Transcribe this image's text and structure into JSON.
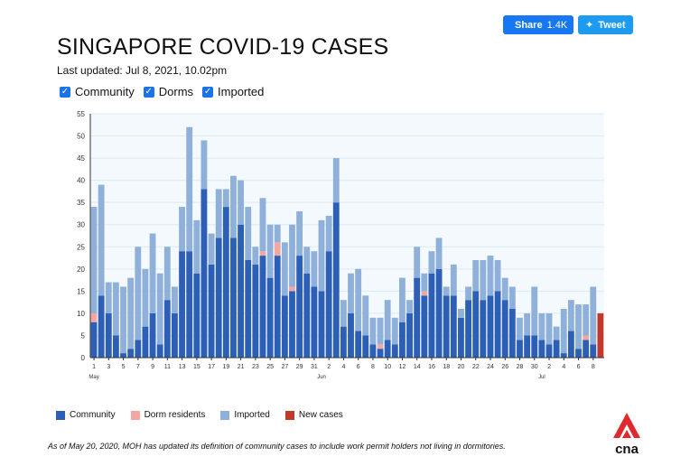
{
  "share": {
    "facebook_label": "Share",
    "facebook_count": "1.4K",
    "tweet_label": "Tweet",
    "facebook_icon": "facebook-icon",
    "twitter_icon": "twitter-icon"
  },
  "title": "SINGAPORE COVID-19 CASES",
  "last_updated": "Last updated: Jul 8, 2021, 10.02pm",
  "filters": [
    {
      "label": "Community",
      "checked": true
    },
    {
      "label": "Dorms",
      "checked": true
    },
    {
      "label": "Imported",
      "checked": true
    }
  ],
  "legend": [
    {
      "label": "Community",
      "color": "#2c5fb5"
    },
    {
      "label": "Dorm residents",
      "color": "#f4a6a0"
    },
    {
      "label": "Imported",
      "color": "#8fb0d8"
    },
    {
      "label": "New cases",
      "color": "#c0392b"
    }
  ],
  "note": "As of May 20, 2020, MOH has updated its definition of community cases to include work permit holders not living in dormitories.",
  "logo": {
    "text": "cna",
    "color": "#e0292e"
  },
  "chart_data": {
    "type": "bar",
    "stacked": true,
    "ylim": [
      0,
      55
    ],
    "yticks": [
      0,
      5,
      10,
      15,
      20,
      25,
      30,
      35,
      40,
      45,
      50,
      55
    ],
    "grid": true,
    "tick_labels": [
      {
        "index": 0,
        "label": "1"
      },
      {
        "index": 2,
        "label": "3"
      },
      {
        "index": 4,
        "label": "5"
      },
      {
        "index": 6,
        "label": "7"
      },
      {
        "index": 8,
        "label": "9"
      },
      {
        "index": 10,
        "label": "11"
      },
      {
        "index": 12,
        "label": "13"
      },
      {
        "index": 14,
        "label": "15"
      },
      {
        "index": 16,
        "label": "17"
      },
      {
        "index": 18,
        "label": "19"
      },
      {
        "index": 20,
        "label": "21"
      },
      {
        "index": 22,
        "label": "23"
      },
      {
        "index": 24,
        "label": "25"
      },
      {
        "index": 26,
        "label": "27"
      },
      {
        "index": 28,
        "label": "29"
      },
      {
        "index": 30,
        "label": "31"
      },
      {
        "index": 32,
        "label": "2"
      },
      {
        "index": 34,
        "label": "4"
      },
      {
        "index": 36,
        "label": "6"
      },
      {
        "index": 38,
        "label": "8"
      },
      {
        "index": 40,
        "label": "10"
      },
      {
        "index": 42,
        "label": "12"
      },
      {
        "index": 44,
        "label": "14"
      },
      {
        "index": 46,
        "label": "16"
      },
      {
        "index": 48,
        "label": "18"
      },
      {
        "index": 50,
        "label": "20"
      },
      {
        "index": 52,
        "label": "22"
      },
      {
        "index": 54,
        "label": "24"
      },
      {
        "index": 56,
        "label": "26"
      },
      {
        "index": 58,
        "label": "28"
      },
      {
        "index": 60,
        "label": "30"
      },
      {
        "index": 62,
        "label": "2"
      },
      {
        "index": 64,
        "label": "4"
      },
      {
        "index": 66,
        "label": "6"
      },
      {
        "index": 68,
        "label": "8"
      }
    ],
    "month_labels": [
      {
        "index": 0,
        "label": "May"
      },
      {
        "index": 31,
        "label": "Jun"
      },
      {
        "index": 61,
        "label": "Jul"
      }
    ],
    "series": [
      {
        "name": "Community",
        "color": "#2c5fb5",
        "values": [
          8,
          14,
          10,
          5,
          1,
          2,
          4,
          7,
          10,
          3,
          13,
          10,
          24,
          24,
          19,
          38,
          21,
          27,
          34,
          27,
          30,
          22,
          21,
          23,
          18,
          23,
          14,
          15,
          23,
          19,
          16,
          15,
          24,
          35,
          7,
          10,
          6,
          5,
          3,
          2,
          4,
          3,
          8,
          10,
          18,
          14,
          19,
          20,
          14,
          14,
          9,
          13,
          15,
          13,
          14,
          15,
          13,
          11,
          4,
          5,
          5,
          4,
          3,
          4,
          1,
          6,
          2,
          4,
          3,
          0
        ]
      },
      {
        "name": "Dorm residents",
        "color": "#f4a6a0",
        "values": [
          2,
          0,
          0,
          0,
          0,
          0,
          0,
          0,
          0,
          0,
          0,
          0,
          0,
          0,
          0,
          0,
          0,
          0,
          0,
          0,
          0,
          0,
          0,
          1,
          0,
          3,
          0,
          1,
          0,
          0,
          0,
          0,
          0,
          0,
          0,
          0,
          0,
          0,
          0,
          1,
          0,
          0,
          0,
          0,
          0,
          1,
          0,
          0,
          0,
          0,
          0,
          0,
          0,
          0,
          0,
          0,
          0,
          0,
          0,
          0,
          0,
          0,
          0,
          0,
          0,
          0,
          0,
          1,
          0,
          0
        ]
      },
      {
        "name": "Imported",
        "color": "#8fb0d8",
        "values": [
          24,
          25,
          7,
          12,
          15,
          16,
          21,
          13,
          18,
          16,
          12,
          6,
          10,
          28,
          12,
          11,
          7,
          11,
          4,
          14,
          10,
          12,
          4,
          12,
          12,
          4,
          12,
          14,
          10,
          6,
          8,
          16,
          8,
          10,
          6,
          9,
          14,
          9,
          6,
          6,
          9,
          6,
          10,
          3,
          7,
          4,
          5,
          7,
          2,
          7,
          2,
          3,
          7,
          9,
          9,
          7,
          5,
          5,
          5,
          5,
          11,
          6,
          7,
          3,
          10,
          7,
          10,
          7,
          13,
          0
        ]
      },
      {
        "name": "New cases",
        "color": "#c0392b",
        "values": [
          0,
          0,
          0,
          0,
          0,
          0,
          0,
          0,
          0,
          0,
          0,
          0,
          0,
          0,
          0,
          0,
          0,
          0,
          0,
          0,
          0,
          0,
          0,
          0,
          0,
          0,
          0,
          0,
          0,
          0,
          0,
          0,
          0,
          0,
          0,
          0,
          0,
          0,
          0,
          0,
          0,
          0,
          0,
          0,
          0,
          0,
          0,
          0,
          0,
          0,
          0,
          0,
          0,
          0,
          0,
          0,
          0,
          0,
          0,
          0,
          0,
          0,
          0,
          0,
          0,
          0,
          0,
          0,
          0,
          10
        ]
      }
    ]
  }
}
